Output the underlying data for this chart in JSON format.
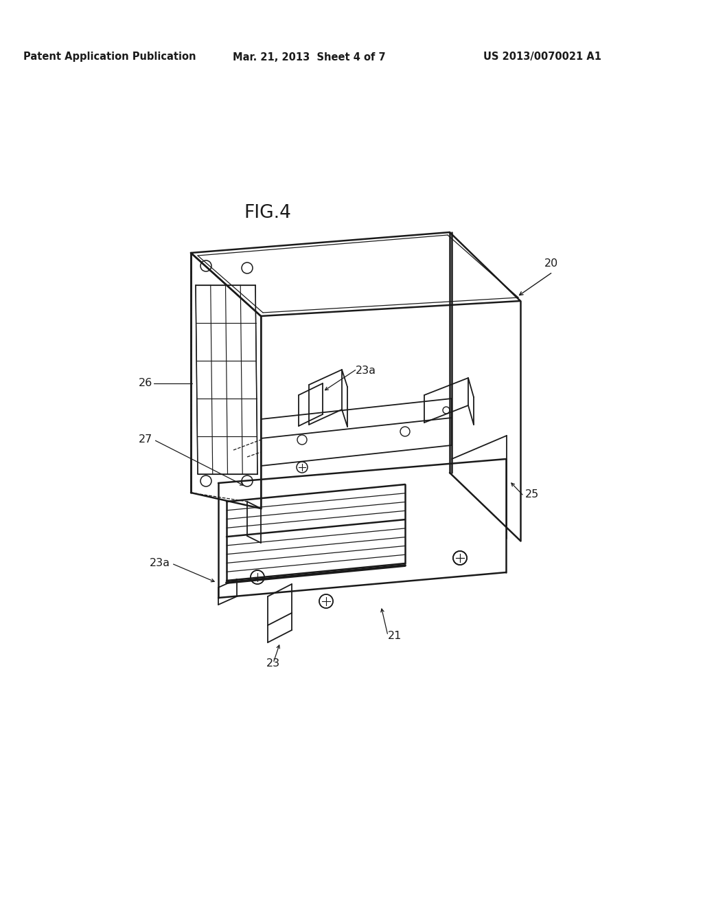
{
  "background_color": "#ffffff",
  "header_left": "Patent Application Publication",
  "header_center": "Mar. 21, 2013  Sheet 4 of 7",
  "header_right": "US 2013/0070021 A1",
  "fig_label": "FIG.4",
  "header_fontsize": 10.5,
  "ref_fontsize": 11.5,
  "fig_label_fontsize": 19,
  "text_color": "#1a1a1a"
}
